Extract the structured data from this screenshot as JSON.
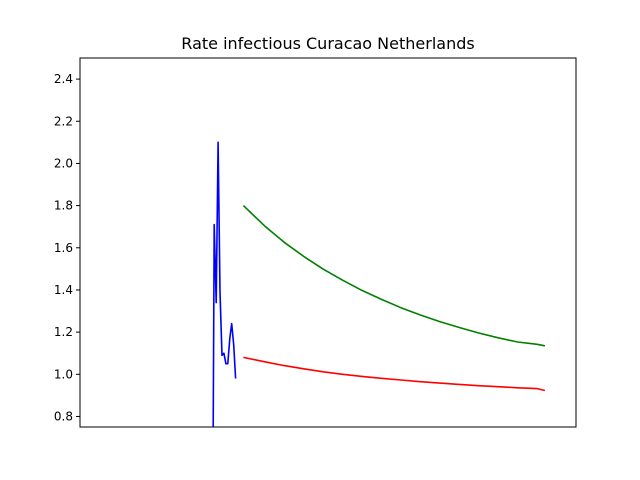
{
  "chart_data": {
    "type": "line",
    "title": "Rate infectious Curacao Netherlands",
    "xlabel": "",
    "ylabel": "",
    "ylim": [
      0.75,
      2.5
    ],
    "xlim": [
      -45,
      210
    ],
    "xticks_visible": false,
    "grid": false,
    "yticks": [
      "0.8",
      "1.0",
      "1.2",
      "1.4",
      "1.6",
      "1.8",
      "2.0",
      "2.2",
      "2.4"
    ],
    "series": [
      {
        "color": "#0000ff",
        "x": [
          23.5,
          24,
          25,
          26,
          27,
          28,
          29,
          30,
          31,
          32,
          33,
          34,
          35,
          36,
          37,
          38
        ],
        "y": [
          0.75,
          1.71,
          1.34,
          2.1,
          1.39,
          1.09,
          1.1,
          1.05,
          1.05,
          1.17,
          1.24,
          1.14,
          0.98,
          null,
          null,
          null
        ]
      },
      {
        "color": "#008000",
        "x": [
          39,
          50,
          60,
          70,
          80,
          90,
          100,
          110,
          120,
          130,
          140,
          150,
          160,
          170,
          180,
          190,
          194
        ],
        "y": [
          1.8,
          1.703,
          1.626,
          1.559,
          1.499,
          1.446,
          1.398,
          1.355,
          1.316,
          1.281,
          1.25,
          1.222,
          1.196,
          1.173,
          1.153,
          1.142,
          1.135
        ]
      },
      {
        "color": "#ff0000",
        "x": [
          39,
          50,
          60,
          70,
          80,
          90,
          100,
          110,
          120,
          130,
          140,
          150,
          160,
          170,
          180,
          190,
          194
        ],
        "y": [
          1.08,
          1.059,
          1.041,
          1.026,
          1.012,
          1.0,
          0.99,
          0.981,
          0.973,
          0.965,
          0.958,
          0.952,
          0.946,
          0.941,
          0.936,
          0.932,
          0.923
        ]
      }
    ]
  }
}
